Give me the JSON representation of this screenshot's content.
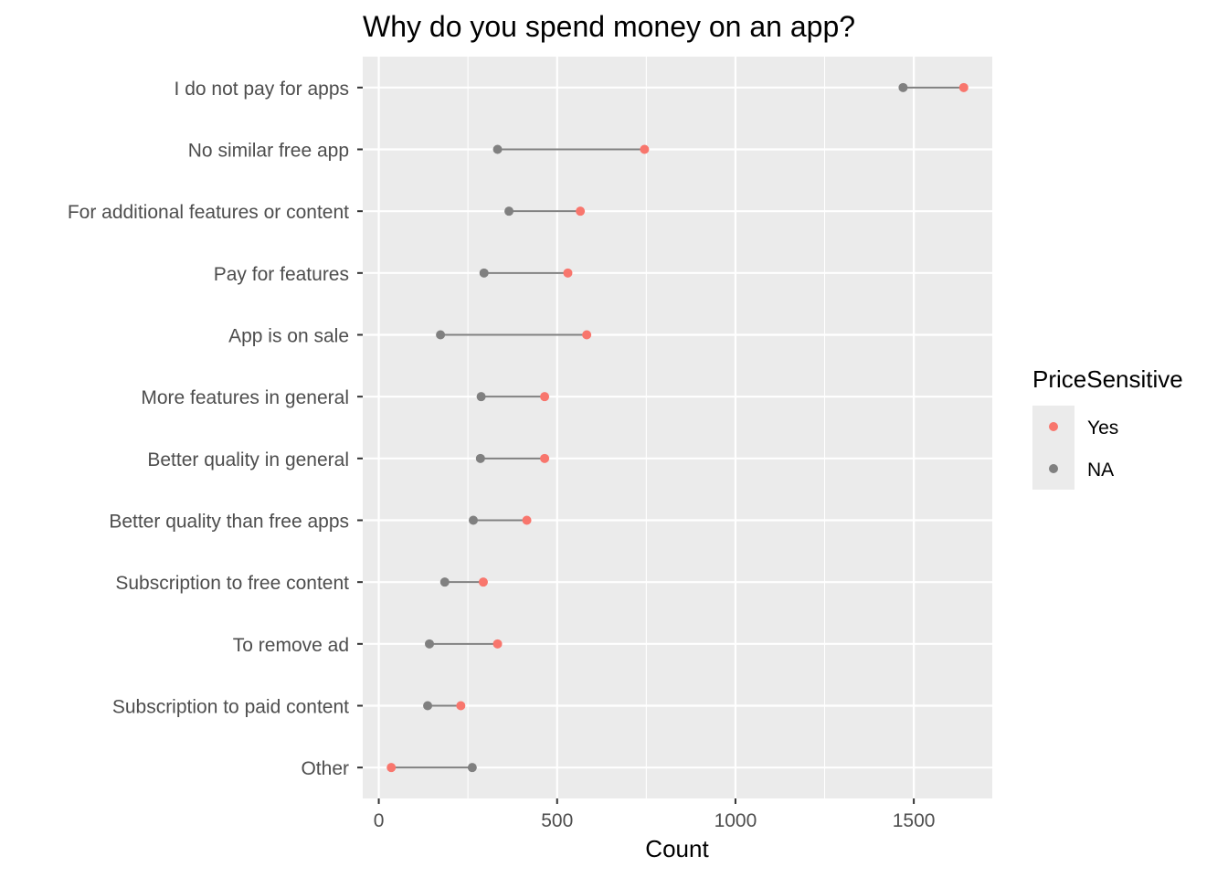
{
  "chart_data": {
    "type": "dumbbell",
    "title": "Why do you spend money on an app?",
    "xlabel": "Count",
    "ylabel": "",
    "xlim": [
      -45,
      1720
    ],
    "x_ticks": [
      0,
      500,
      1000,
      1500
    ],
    "x_tick_labels": [
      "0",
      "500",
      "1000",
      "1500"
    ],
    "grid": true,
    "legend_position": "right",
    "legend_title": "PriceSensitive",
    "categories": [
      "I do not pay for apps",
      "No similar free app",
      "For additional features or content",
      "Pay for features",
      "App is on sale",
      "More features in general",
      "Better quality in general",
      "Better quality than free apps",
      "Subscription to free content",
      "To remove ad",
      "Subscription to paid content",
      "Other"
    ],
    "series": [
      {
        "name": "Yes",
        "color": "#f8766d",
        "values": [
          1640,
          745,
          565,
          530,
          583,
          465,
          465,
          415,
          293,
          333,
          230,
          35
        ]
      },
      {
        "name": "NA",
        "color": "#808080",
        "values": [
          1470,
          333,
          365,
          295,
          173,
          287,
          285,
          265,
          185,
          142,
          137,
          262
        ]
      }
    ],
    "segment_color": "#808080",
    "panel_color": "#ebebeb",
    "grid_color": "#ffffff"
  }
}
